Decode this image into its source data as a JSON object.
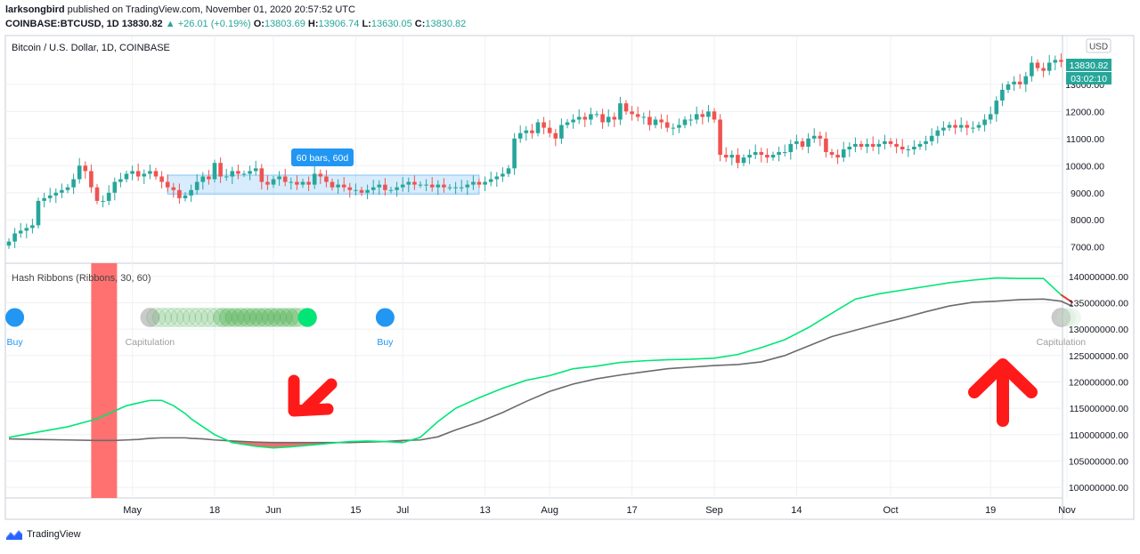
{
  "header": {
    "line1_user": "larksongbird",
    "line1_rest": " published on TradingView.com, November 01, 2020 20:57:52 UTC",
    "symbol": "COINBASE:BTCUSD, 1D",
    "last": "13830.82",
    "change": "▲ +26.01 (+0.19%)",
    "o_label": "O:",
    "o": "13803.69",
    "h_label": "H:",
    "h": "13906.74",
    "l_label": "L:",
    "l": "13630.05",
    "c_label": "C:",
    "c": "13830.82"
  },
  "colors": {
    "up": "#26a69a",
    "down": "#ef5350",
    "green_line": "#00e676",
    "gray_line": "#6b6b6b",
    "fill": "#f26d6d",
    "blue": "#2196f3",
    "price_badge": "#26a69a",
    "arrow": "#ff1a1a"
  },
  "footer": {
    "brand": "TradingView",
    "icon": "tradingview-logo-icon"
  },
  "chart_data": [
    {
      "type": "candlestick",
      "title": "Bitcoin / U.S. Dollar, 1D, COINBASE",
      "currency": "USD",
      "last_price_label": "13830.82",
      "countdown_label": "03:02:10",
      "ylim": [
        6400,
        14800
      ],
      "y_ticks": [
        "7000.00",
        "8000.00",
        "9000.00",
        "10000.00",
        "11000.00",
        "12000.00",
        "13000.00"
      ],
      "x_ticks": [
        "May",
        "18",
        "Jun",
        "15",
        "Jul",
        "13",
        "Aug",
        "17",
        "Sep",
        "14",
        "Oct",
        "19",
        "Nov"
      ],
      "x_tick_index": [
        21,
        35,
        45,
        59,
        67,
        81,
        92,
        106,
        120,
        134,
        150,
        167,
        180
      ],
      "close": [
        7200,
        7500,
        7600,
        7700,
        7800,
        8700,
        8800,
        8900,
        9000,
        9100,
        9200,
        9500,
        10000,
        9800,
        9200,
        8700,
        8700,
        9000,
        9400,
        9500,
        9700,
        9800,
        9600,
        9700,
        9800,
        9600,
        9400,
        9200,
        9100,
        8800,
        8900,
        9100,
        9400,
        9600,
        9500,
        10100,
        9600,
        9600,
        9800,
        9700,
        9700,
        9800,
        9900,
        9400,
        9300,
        9500,
        9600,
        9400,
        9400,
        9300,
        9400,
        9300,
        9700,
        9600,
        9400,
        9200,
        9300,
        9200,
        9100,
        9100,
        9000,
        9100,
        9200,
        9300,
        9100,
        9100,
        9200,
        9300,
        9400,
        9300,
        9300,
        9300,
        9200,
        9300,
        9200,
        9200,
        9200,
        9200,
        9300,
        9400,
        9300,
        9400,
        9500,
        9600,
        9700,
        9900,
        11000,
        11200,
        11300,
        11200,
        11600,
        11400,
        11200,
        11000,
        11500,
        11600,
        11700,
        11800,
        11700,
        11900,
        11900,
        11600,
        11800,
        11700,
        12300,
        12000,
        11900,
        11800,
        11800,
        11500,
        11700,
        11600,
        11400,
        11400,
        11500,
        11700,
        11700,
        11900,
        11800,
        12000,
        11700,
        10400,
        10300,
        10400,
        10100,
        10300,
        10400,
        10500,
        10400,
        10300,
        10400,
        10500,
        10500,
        10800,
        10900,
        10700,
        11000,
        11100,
        11000,
        10500,
        10400,
        10300,
        10600,
        10700,
        10800,
        10700,
        10800,
        10700,
        10800,
        10900,
        10800,
        10700,
        10600,
        10600,
        10700,
        10800,
        10900,
        11100,
        11300,
        11400,
        11500,
        11400,
        11500,
        11400,
        11400,
        11500,
        11700,
        11900,
        12400,
        12800,
        13000,
        13100,
        13000,
        13300,
        13800,
        13600,
        13500,
        13800,
        13900,
        13830
      ]
    },
    {
      "type": "line",
      "title": "Hash Ribbons (Ribbons, 30, 60)",
      "ylim": [
        98000000,
        142500000
      ],
      "y_ticks": [
        "100000000.00",
        "105000000.00",
        "110000000.00",
        "115000000.00",
        "120000000.00",
        "125000000.00",
        "130000000.00",
        "135000000.00",
        "140000000.00"
      ],
      "x": [
        0,
        5,
        10,
        15,
        18,
        20,
        22,
        24,
        26,
        28,
        30,
        31,
        33,
        35,
        38,
        42,
        45,
        48,
        51,
        55,
        58,
        61,
        64,
        67,
        70,
        73,
        76,
        80,
        84,
        88,
        92,
        96,
        100,
        104,
        108,
        112,
        116,
        120,
        124,
        128,
        132,
        136,
        140,
        144,
        148,
        152,
        156,
        160,
        164,
        168,
        172,
        176,
        179,
        181
      ],
      "series": [
        {
          "name": "",
          "values": [
            109500000,
            110500000,
            111500000,
            113000000,
            114500000,
            115500000,
            116000000,
            116500000,
            116500000,
            115500000,
            114000000,
            113000000,
            111500000,
            110000000,
            108500000,
            107800000,
            107500000,
            107700000,
            108000000,
            108400000,
            108700000,
            108800000,
            108700000,
            108500000,
            109500000,
            112500000,
            115000000,
            117000000,
            118800000,
            120300000,
            121200000,
            122500000,
            123000000,
            123700000,
            124000000,
            124200000,
            124300000,
            124500000,
            125200000,
            126500000,
            128000000,
            130300000,
            133000000,
            135700000,
            136700000,
            137400000,
            138100000,
            138800000,
            139300000,
            139700000,
            139600000,
            139600000,
            136500000,
            135000000
          ]
        },
        {
          "name": "",
          "values": [
            109200000,
            109100000,
            109000000,
            108900000,
            108900000,
            109000000,
            109100000,
            109300000,
            109400000,
            109400000,
            109400000,
            109300000,
            109200000,
            109000000,
            108800000,
            108600000,
            108500000,
            108500000,
            108500000,
            108500000,
            108500000,
            108600000,
            108700000,
            108900000,
            109000000,
            109600000,
            110900000,
            112400000,
            114200000,
            116300000,
            118200000,
            119600000,
            120600000,
            121300000,
            121900000,
            122500000,
            122800000,
            123100000,
            123300000,
            123800000,
            125000000,
            126800000,
            128600000,
            129800000,
            131000000,
            132100000,
            133300000,
            134400000,
            135100000,
            135300000,
            135600000,
            135700000,
            135300000,
            134300000
          ]
        }
      ],
      "signals": [
        {
          "label": "Buy",
          "x": 1
        },
        {
          "label": "Capitulation",
          "x": 24
        },
        {
          "label": "Buy",
          "x": 64
        },
        {
          "label": "Capitulation",
          "x": 179
        }
      ]
    }
  ]
}
